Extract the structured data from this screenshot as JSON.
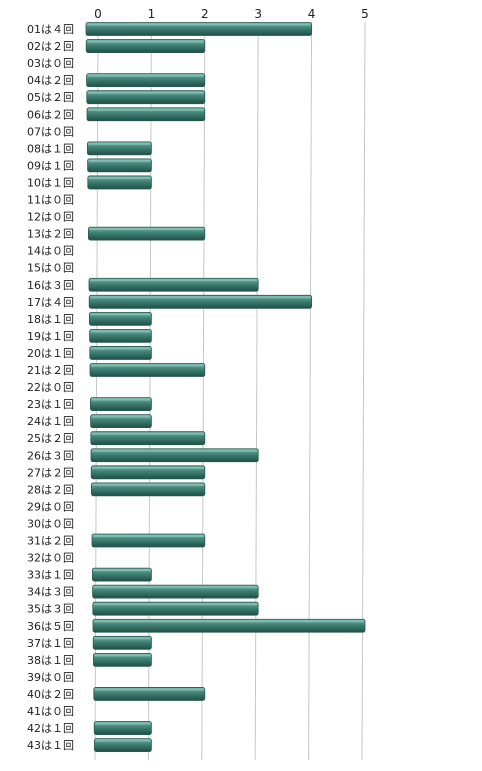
{
  "chart_data": {
    "type": "bar",
    "orientation": "horizontal",
    "title": "",
    "xlabel": "",
    "ylabel": "",
    "xlim": [
      0,
      5
    ],
    "xticks": [
      "0",
      "1",
      "2",
      "3",
      "4",
      "5"
    ],
    "grid": true,
    "legend": "none",
    "bar_color": "#3f7f73",
    "categories": [
      "01は４回",
      "02は２回",
      "03は０回",
      "04は２回",
      "05は２回",
      "06は２回",
      "07は０回",
      "08は１回",
      "09は１回",
      "10は１回",
      "11は０回",
      "12は０回",
      "13は２回",
      "14は０回",
      "15は０回",
      "16は３回",
      "17は４回",
      "18は１回",
      "19は１回",
      "20は１回",
      "21は２回",
      "22は０回",
      "23は１回",
      "24は１回",
      "25は２回",
      "26は３回",
      "27は２回",
      "28は２回",
      "29は０回",
      "30は０回",
      "31は２回",
      "32は０回",
      "33は１回",
      "34は３回",
      "35は３回",
      "36は５回",
      "37は１回",
      "38は１回",
      "39は０回",
      "40は２回",
      "41は０回",
      "42は１回",
      "43は１回"
    ],
    "values": [
      4,
      2,
      0,
      2,
      2,
      2,
      0,
      1,
      1,
      1,
      0,
      0,
      2,
      0,
      0,
      3,
      4,
      1,
      1,
      1,
      2,
      0,
      1,
      1,
      2,
      3,
      2,
      2,
      0,
      0,
      2,
      0,
      1,
      3,
      3,
      5,
      1,
      1,
      0,
      2,
      0,
      1,
      1
    ]
  }
}
